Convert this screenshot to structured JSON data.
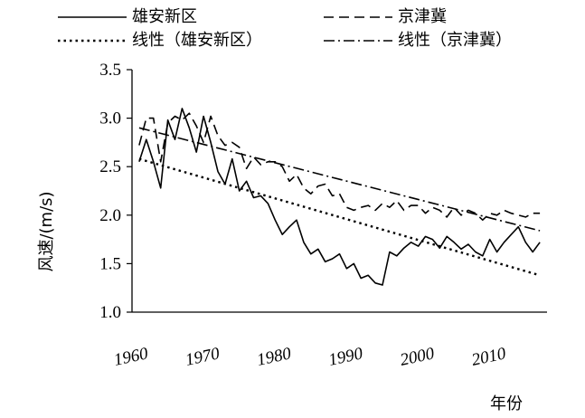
{
  "chart_data": {
    "type": "line",
    "xlabel": "年份",
    "ylabel": "风速/(m/s)",
    "xlim": [
      1960,
      2018
    ],
    "ylim": [
      1.0,
      3.5
    ],
    "x_ticks": [
      1960,
      1970,
      1980,
      1990,
      2000,
      2010
    ],
    "x_tick_labels": [
      "1960",
      "1970",
      "1980",
      "1990",
      "2000",
      "2010"
    ],
    "y_ticks": [
      1.0,
      1.5,
      2.0,
      2.5,
      3.0,
      3.5
    ],
    "y_tick_labels": [
      "1.0",
      "1.5",
      "2.0",
      "2.5",
      "3.0",
      "3.5"
    ],
    "grid": false,
    "legend": {
      "placement": "top",
      "entries": [
        {
          "label": "雄安新区",
          "style": "solid"
        },
        {
          "label": "京津冀",
          "style": "dashed"
        },
        {
          "label": "线性（雄安新区）",
          "style": "dotted"
        },
        {
          "label": "线性（京津冀）",
          "style": "dashdot"
        }
      ]
    },
    "series": [
      {
        "name": "雄安新区",
        "style": "solid",
        "x": [
          1961,
          1962,
          1963,
          1964,
          1965,
          1966,
          1967,
          1968,
          1969,
          1970,
          1971,
          1972,
          1973,
          1974,
          1975,
          1976,
          1977,
          1978,
          1979,
          1980,
          1981,
          1982,
          1983,
          1984,
          1985,
          1986,
          1987,
          1988,
          1989,
          1990,
          1991,
          1992,
          1993,
          1994,
          1995,
          1996,
          1997,
          1998,
          1999,
          2000,
          2001,
          2002,
          2003,
          2004,
          2005,
          2006,
          2007,
          2008,
          2009,
          2010,
          2011,
          2012,
          2013,
          2014,
          2015,
          2016,
          2017
        ],
        "y": [
          2.55,
          2.78,
          2.55,
          2.28,
          2.98,
          2.78,
          3.1,
          2.9,
          2.65,
          3.02,
          2.75,
          2.45,
          2.32,
          2.58,
          2.25,
          2.35,
          2.18,
          2.2,
          2.12,
          1.95,
          1.8,
          1.88,
          1.95,
          1.72,
          1.6,
          1.65,
          1.52,
          1.55,
          1.6,
          1.45,
          1.5,
          1.35,
          1.38,
          1.3,
          1.28,
          1.62,
          1.58,
          1.66,
          1.72,
          1.68,
          1.78,
          1.75,
          1.66,
          1.78,
          1.72,
          1.65,
          1.7,
          1.62,
          1.58,
          1.75,
          1.62,
          1.72,
          1.8,
          1.88,
          1.72,
          1.62,
          1.72
        ]
      },
      {
        "name": "京津冀",
        "style": "dashed",
        "x": [
          1961,
          1962,
          1963,
          1964,
          1965,
          1966,
          1967,
          1968,
          1969,
          1970,
          1971,
          1972,
          1973,
          1974,
          1975,
          1976,
          1977,
          1978,
          1979,
          1980,
          1981,
          1982,
          1983,
          1984,
          1985,
          1986,
          1987,
          1988,
          1989,
          1990,
          1991,
          1992,
          1993,
          1994,
          1995,
          1996,
          1997,
          1998,
          1999,
          2000,
          2001,
          2002,
          2003,
          2004,
          2005,
          2006,
          2007,
          2008,
          2009,
          2010,
          2011,
          2012,
          2013,
          2014,
          2015,
          2016,
          2017
        ],
        "y": [
          2.72,
          3.0,
          3.0,
          2.55,
          2.95,
          3.02,
          2.98,
          3.05,
          2.92,
          2.75,
          3.02,
          2.82,
          2.72,
          2.75,
          2.7,
          2.48,
          2.6,
          2.52,
          2.55,
          2.55,
          2.5,
          2.35,
          2.42,
          2.28,
          2.22,
          2.3,
          2.32,
          2.2,
          2.22,
          2.08,
          2.05,
          2.08,
          2.1,
          2.05,
          2.12,
          2.08,
          2.15,
          2.05,
          2.1,
          2.1,
          2.02,
          2.08,
          2.05,
          1.98,
          2.08,
          2.0,
          2.05,
          2.02,
          1.95,
          2.02,
          2.0,
          2.05,
          2.02,
          2.0,
          1.98,
          2.02,
          2.02
        ]
      },
      {
        "name": "线性（雄安新区）",
        "style": "dotted",
        "x": [
          1961,
          2017
        ],
        "y": [
          2.58,
          1.38
        ]
      },
      {
        "name": "线性（京津冀）",
        "style": "dashdot",
        "x": [
          1961,
          2017
        ],
        "y": [
          2.9,
          1.84
        ]
      }
    ]
  }
}
